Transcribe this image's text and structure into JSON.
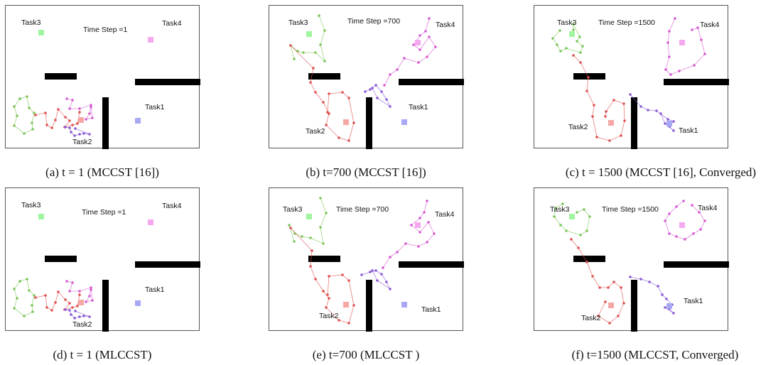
{
  "panels": [
    {
      "id": "a",
      "time_step": "Time Step =1",
      "caption": "(a) t = 1 (MCCST [16])",
      "labels": {
        "task1": "Task1",
        "task2": "Task2",
        "task3": "Task3",
        "task4": "Task4"
      }
    },
    {
      "id": "b",
      "time_step": "Time Step =700",
      "caption": "(b) t=700 (MCCST [16])",
      "labels": {
        "task1": "Task1",
        "task2": "Task2",
        "task3": "Task3",
        "task4": "Task4"
      }
    },
    {
      "id": "c",
      "time_step": "Time Step =1500",
      "caption": "(c) t = 1500 (MCCST [16], Converged)",
      "labels": {
        "task1": "Task1",
        "task2": "Task2",
        "task3": "Task3",
        "task4": "Task4"
      }
    },
    {
      "id": "d",
      "time_step": "Time Step =1",
      "caption": "(d) t = 1 (MLCCST)",
      "labels": {
        "task1": "Task1",
        "task2": "Task2",
        "task3": "Task3",
        "task4": "Task4"
      }
    },
    {
      "id": "e",
      "time_step": "Time Step =700",
      "caption": "(e) t=700 (MLCCST )",
      "labels": {
        "task1": "Task1",
        "task2": "Task2",
        "task3": "Task3",
        "task4": "Task4"
      }
    },
    {
      "id": "f",
      "time_step": "Time Step =1500",
      "caption": "(f) t=1500 (MLCCST, Converged)",
      "labels": {
        "task1": "Task1",
        "task2": "Task2",
        "task3": "Task3",
        "task4": "Task4"
      }
    }
  ],
  "colors": {
    "task1": "#a8a8f5",
    "task2": "#f5a7a3",
    "task3": "#9ef59e",
    "task4": "#f5a8f0",
    "path_task1": "#8a5ad6",
    "path_task2": "#e05050",
    "path_task3": "#7cc65a",
    "path_task4": "#d65ad0",
    "obstacle": "#000000"
  }
}
